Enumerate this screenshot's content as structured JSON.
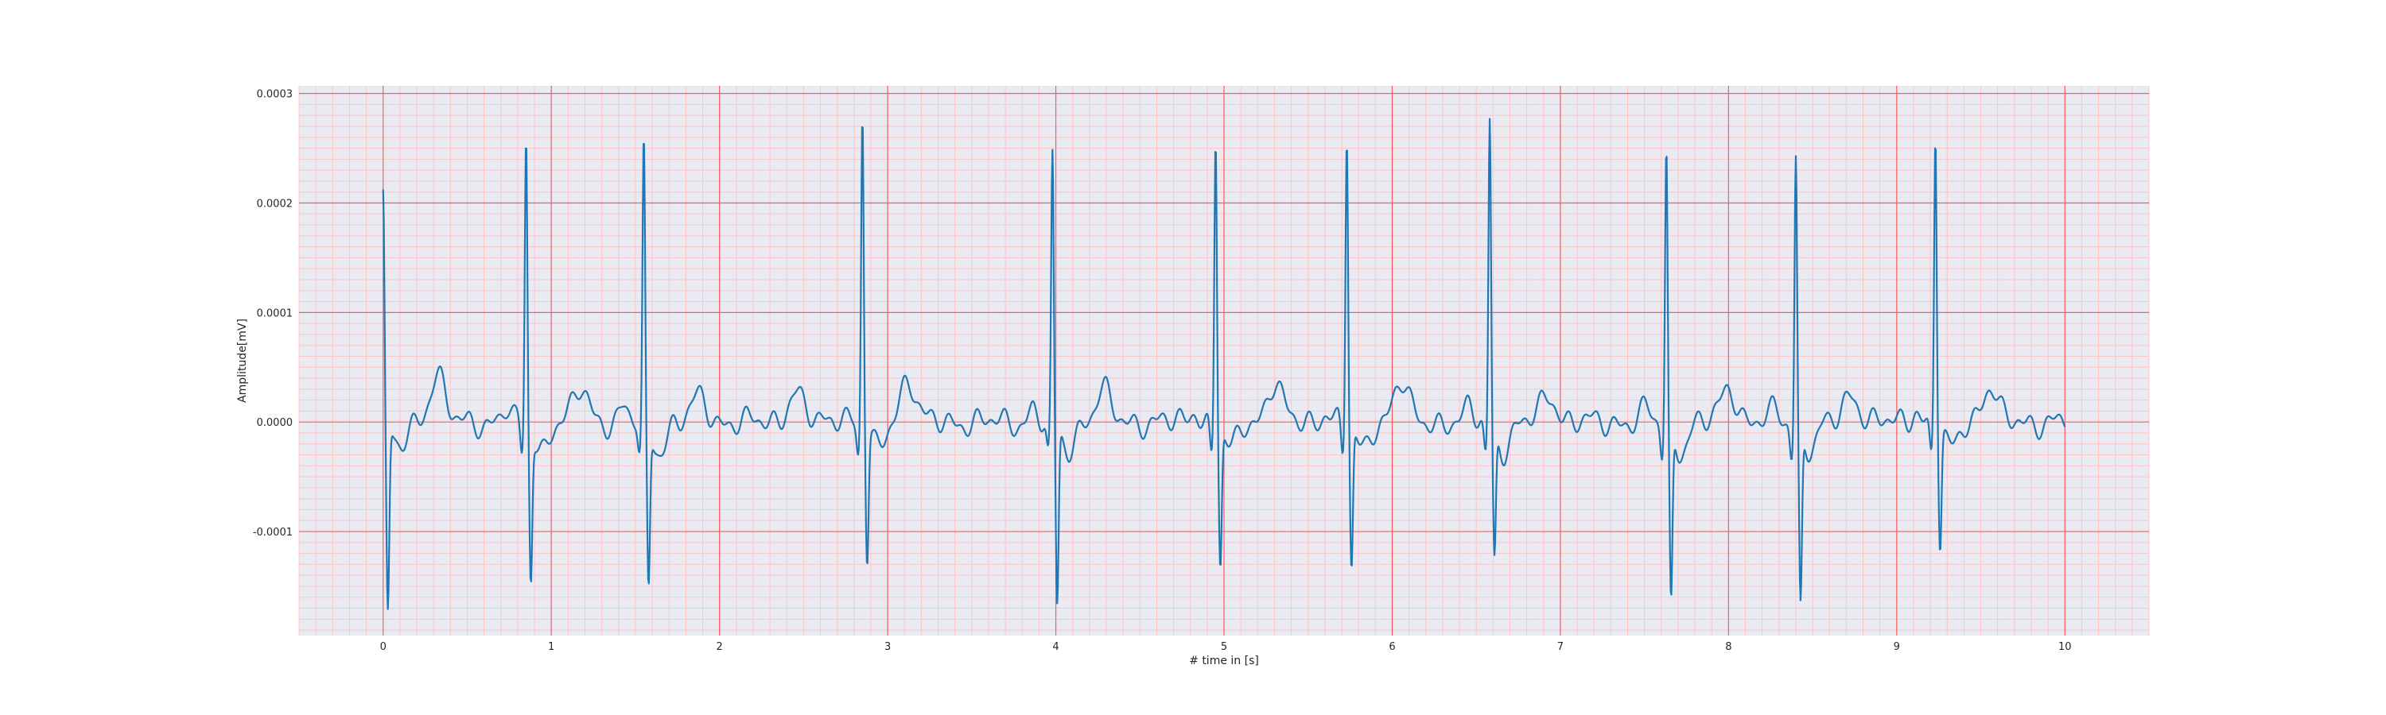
{
  "chart_data": {
    "type": "line",
    "title": "",
    "xlabel": "# time in [s]",
    "ylabel": "Amplitude[mV]",
    "xlim": [
      -0.5,
      10.5
    ],
    "ylim": [
      -0.000195,
      0.000307
    ],
    "x_ticks": [
      0,
      1,
      2,
      3,
      4,
      5,
      6,
      7,
      8,
      9,
      10
    ],
    "x_tick_labels": [
      "0",
      "1",
      "2",
      "3",
      "4",
      "5",
      "6",
      "7",
      "8",
      "9",
      "10"
    ],
    "y_ticks": [
      -0.0001,
      0.0,
      0.0001,
      0.0002,
      0.0003
    ],
    "y_tick_labels": [
      "-0.0001",
      "0.0000",
      "0.0001",
      "0.0002",
      "0.0003"
    ],
    "grid": {
      "major": true,
      "minor": true
    },
    "colors": {
      "plot_background": "#eaeaf2",
      "major_grid": "#ff5a5a",
      "minor_grid": "#ffc4c4",
      "line": "#1f77b4"
    },
    "series": [
      {
        "name": "",
        "beats": [
          {
            "t": 0.0,
            "r": 0.00021,
            "s": -0.000172
          },
          {
            "t": 0.85,
            "r": 0.000263,
            "s": -0.000135
          },
          {
            "t": 1.55,
            "r": 0.000254,
            "s": -0.000145
          },
          {
            "t": 2.85,
            "r": 0.000284,
            "s": -0.00012
          },
          {
            "t": 3.98,
            "r": 0.000243,
            "s": -0.000163
          },
          {
            "t": 4.95,
            "r": 0.000266,
            "s": -0.000125
          },
          {
            "t": 5.73,
            "r": 0.000267,
            "s": -0.00013
          },
          {
            "t": 6.58,
            "r": 0.000281,
            "s": -0.000116
          },
          {
            "t": 7.63,
            "r": 0.000251,
            "s": -0.000161
          },
          {
            "t": 8.4,
            "r": 0.000246,
            "s": -0.000161
          },
          {
            "t": 9.23,
            "r": 0.00027,
            "s": -0.000107
          }
        ],
        "t_waves": [
          {
            "t": 0.32,
            "a": 4.3e-05
          },
          {
            "t": 1.18,
            "a": 3e-05
          },
          {
            "t": 1.88,
            "a": 2.2e-05
          },
          {
            "t": 2.45,
            "a": 2.8e-05
          },
          {
            "t": 3.12,
            "a": 4e-05
          },
          {
            "t": 4.28,
            "a": 2.8e-05
          },
          {
            "t": 5.3,
            "a": 3.6e-05
          },
          {
            "t": 6.05,
            "a": 3.6e-05
          },
          {
            "t": 6.93,
            "a": 2.6e-05
          },
          {
            "t": 8.0,
            "a": 3.3e-05
          },
          {
            "t": 8.73,
            "a": 2.6e-05
          },
          {
            "t": 9.55,
            "a": 3.2e-05
          }
        ]
      }
    ]
  }
}
